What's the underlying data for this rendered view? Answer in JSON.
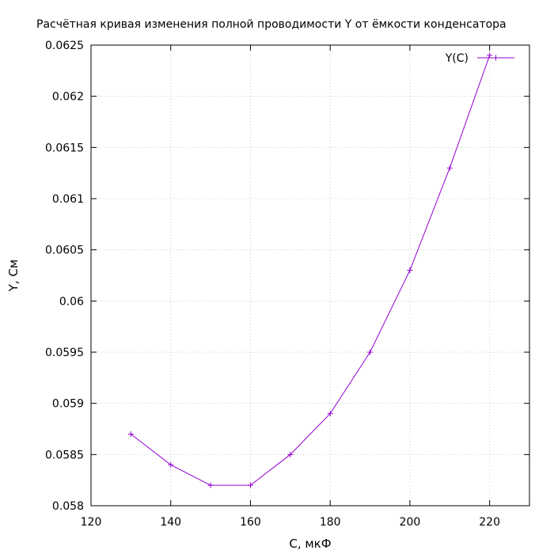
{
  "chart_data": {
    "type": "line",
    "title": "Расчётная кривая изменения полной проводимости Y от ёмкости конденсатора",
    "xlabel": "C, мкФ",
    "ylabel": "Y, См",
    "xlim": [
      120,
      230
    ],
    "ylim": [
      0.058,
      0.0625
    ],
    "xticks": [
      "120",
      "140",
      "160",
      "180",
      "200",
      "220"
    ],
    "yticks": [
      "0.058",
      "0.0585",
      "0.059",
      "0.0595",
      "0.06",
      "0.0605",
      "0.061",
      "0.0615",
      "0.062",
      "0.0625"
    ],
    "grid": true,
    "legend_position": "top-right",
    "series": [
      {
        "name": "Y(C)",
        "color": "#9400d3",
        "marker": "plus",
        "x": [
          130,
          140,
          150,
          160,
          170,
          180,
          190,
          200,
          210,
          220
        ],
        "y": [
          0.0587,
          0.0584,
          0.0582,
          0.0582,
          0.0585,
          0.0589,
          0.0595,
          0.0603,
          0.0613,
          0.0624
        ]
      }
    ]
  }
}
